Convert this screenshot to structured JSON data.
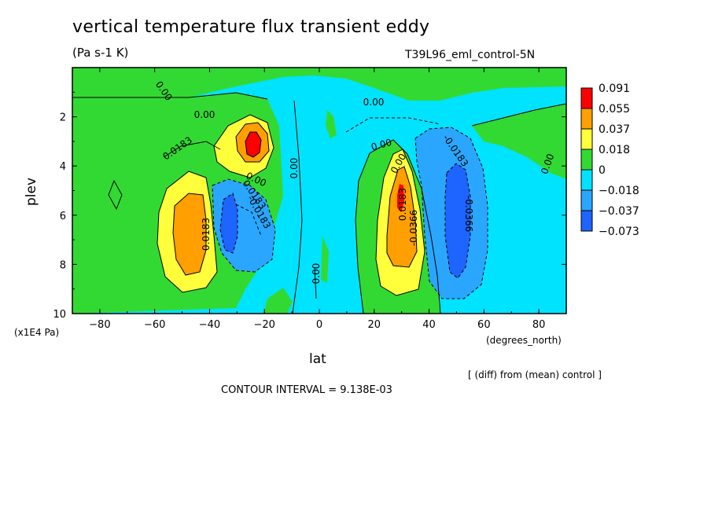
{
  "chart_data": {
    "type": "contour",
    "title": "vertical temperature flux transient eddy",
    "units": "(Pa s-1 K)",
    "run_label": "T39L96_eml_control-5N",
    "xlabel": "lat",
    "x_units": "(degrees_north)",
    "ylabel": "plev",
    "y_units": "(x1E4 Pa)",
    "xlim": [
      -90,
      90
    ],
    "ylim": [
      10,
      0
    ],
    "x_ticks": [
      -80,
      -60,
      -40,
      -20,
      0,
      20,
      40,
      60,
      80
    ],
    "x_tick_labels": [
      "−80",
      "−60",
      "−40",
      "−20",
      "0",
      "20",
      "40",
      "60",
      "80"
    ],
    "y_ticks": [
      2,
      4,
      6,
      8,
      10
    ],
    "y_tick_labels": [
      "2",
      "4",
      "6",
      "8",
      "10"
    ],
    "legend": {
      "labels": [
        "0.091",
        "0.055",
        "0.037",
        "0.018",
        "0",
        "−0.018",
        "−0.037",
        "−0.073"
      ],
      "colors": [
        "#ff0000",
        "#ff9f00",
        "#ffff3c",
        "#33d933",
        "#00e3ff",
        "#2aa6ff",
        "#1e64ff"
      ]
    },
    "contour_labels": [
      "0.00",
      "0.00",
      "0.00",
      "0.00",
      "0.00",
      "0.00",
      "0.00",
      "0.0183",
      "0.0183",
      "-0.0183",
      "-0.0183",
      "0.0183",
      "-0.0366",
      "-0.0366",
      "0.0183",
      "0.00",
      "0.00"
    ],
    "features": [
      {
        "name": "positive max SH upper",
        "lat": -24,
        "plev": 3.0,
        "value": 0.091
      },
      {
        "name": "positive SH mid",
        "lat": -47,
        "plev": 6.5,
        "value": 0.055
      },
      {
        "name": "negative SH mid",
        "lat": -34,
        "plev": 6.3,
        "value": -0.037
      },
      {
        "name": "positive NH mid",
        "lat": 29,
        "plev": 5.5,
        "value": 0.091
      },
      {
        "name": "negative NH mid",
        "lat": 50,
        "plev": 6.0,
        "value": -0.073
      }
    ],
    "diff_note": "[ (diff) from (mean) control ]",
    "contour_interval": "CONTOUR INTERVAL = 9.138E-03"
  }
}
